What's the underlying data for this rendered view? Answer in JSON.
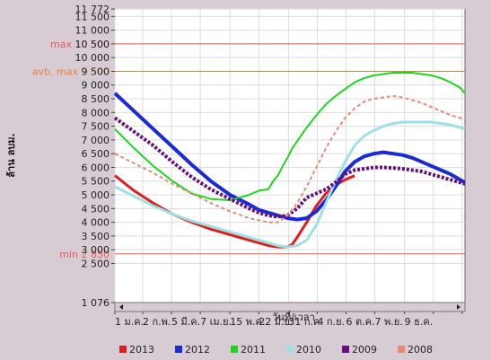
{
  "chart_data": {
    "type": "line",
    "title": "",
    "ylabel": "ล้าน ลบม.",
    "xlabel": "วันที่/เวลา",
    "ylim": [
      1076,
      11772
    ],
    "y_ticks": [
      1076,
      2500,
      3000,
      3500,
      4000,
      4500,
      5000,
      5500,
      6000,
      6500,
      7000,
      7500,
      8000,
      8500,
      9000,
      9500,
      10000,
      10500,
      11000,
      11500,
      11772
    ],
    "y_tick_labels": [
      "1 076",
      "2 500",
      "3 000",
      "3 500",
      "4 000",
      "4 500",
      "5 000",
      "5 500",
      "6 000",
      "6 500",
      "7 000",
      "7 500",
      "8 000",
      "8 500",
      "9 000",
      "9 500",
      "10 000",
      "10 500",
      "11 000",
      "11 500",
      "11 772"
    ],
    "xlim": [
      0,
      365
    ],
    "x_ticks": [
      0,
      29,
      59,
      89,
      120,
      150,
      181,
      211,
      241,
      271,
      302,
      332,
      362
    ],
    "x_tick_labels": [
      "1 ม.ค.",
      "2 ก.พ.",
      "5 มี.ค.",
      "7 เม.ย.",
      "15 พ.ค.",
      "22 มิ.ย.",
      "31 ก.ค.",
      "4 ก.ย.",
      "6 ต.ค.",
      "7 พ.ย.",
      "9 ธ.ค.",
      "",
      ""
    ],
    "reference_lines": [
      {
        "label": "max 10 500",
        "value": 10500,
        "color": "#e45a5a"
      },
      {
        "label": "avb. max 9 500",
        "value": 9500,
        "color": "#e8823a"
      },
      {
        "label": "min 2 850",
        "value": 2850,
        "color": "#e45a5a"
      }
    ],
    "grid": true,
    "legend_position": "bottom",
    "series": [
      {
        "name": "2013",
        "color": "#e01d1d",
        "style": "solid",
        "width": 3,
        "x": [
          0,
          20,
          40,
          60,
          80,
          100,
          120,
          140,
          160,
          170,
          180,
          185,
          190,
          200,
          210,
          220,
          230,
          240,
          250
        ],
        "y": [
          5700,
          5150,
          4700,
          4300,
          4000,
          3750,
          3550,
          3350,
          3150,
          3100,
          3100,
          3200,
          3450,
          4000,
          4600,
          5050,
          5350,
          5550,
          5700
        ]
      },
      {
        "name": "2012",
        "color": "#1a2ad6",
        "style": "solid",
        "width": 4,
        "x": [
          0,
          20,
          40,
          60,
          80,
          100,
          120,
          140,
          150,
          160,
          170,
          180,
          190,
          200,
          210,
          220,
          230,
          240,
          250,
          260,
          270,
          280,
          290,
          300,
          310,
          320,
          330,
          340,
          350,
          365
        ],
        "y": [
          8700,
          8050,
          7400,
          6750,
          6100,
          5500,
          5000,
          4650,
          4450,
          4350,
          4250,
          4150,
          4100,
          4150,
          4400,
          4800,
          5300,
          5850,
          6200,
          6400,
          6500,
          6550,
          6500,
          6450,
          6350,
          6200,
          6050,
          5900,
          5750,
          5450
        ]
      },
      {
        "name": "2011",
        "color": "#1fd61f",
        "style": "solid",
        "width": 2,
        "x": [
          0,
          20,
          40,
          60,
          80,
          100,
          120,
          140,
          150,
          160,
          165,
          170,
          175,
          180,
          185,
          190,
          200,
          210,
          220,
          230,
          240,
          250,
          260,
          270,
          280,
          290,
          300,
          310,
          320,
          330,
          340,
          350,
          360,
          365
        ],
        "y": [
          7400,
          6700,
          6050,
          5500,
          5050,
          4850,
          4800,
          5000,
          5150,
          5200,
          5500,
          5700,
          6050,
          6350,
          6700,
          6950,
          7450,
          7900,
          8300,
          8600,
          8850,
          9100,
          9250,
          9350,
          9400,
          9450,
          9450,
          9450,
          9400,
          9350,
          9250,
          9100,
          8900,
          8700
        ]
      },
      {
        "name": "2010",
        "color": "#9ee0e6",
        "style": "solid",
        "width": 3,
        "x": [
          0,
          20,
          40,
          60,
          80,
          100,
          120,
          140,
          160,
          170,
          180,
          190,
          200,
          210,
          220,
          230,
          240,
          250,
          260,
          270,
          280,
          290,
          300,
          310,
          320,
          330,
          340,
          350,
          360,
          365
        ],
        "y": [
          5300,
          4950,
          4600,
          4300,
          4050,
          3850,
          3650,
          3450,
          3250,
          3150,
          3100,
          3150,
          3350,
          3900,
          4700,
          5500,
          6200,
          6800,
          7150,
          7350,
          7500,
          7600,
          7650,
          7650,
          7650,
          7650,
          7600,
          7550,
          7450,
          7400
        ]
      },
      {
        "name": "2009",
        "color": "#661080",
        "style": "dotted",
        "width": 4,
        "x": [
          0,
          20,
          40,
          60,
          80,
          100,
          120,
          140,
          150,
          160,
          170,
          180,
          190,
          200,
          210,
          220,
          230,
          240,
          250,
          260,
          270,
          280,
          290,
          300,
          310,
          320,
          330,
          340,
          350,
          365
        ],
        "y": [
          7800,
          7300,
          6800,
          6200,
          5650,
          5200,
          4850,
          4500,
          4350,
          4250,
          4200,
          4250,
          4500,
          4900,
          5050,
          5200,
          5450,
          5750,
          5900,
          5950,
          6000,
          6000,
          5980,
          5950,
          5900,
          5850,
          5750,
          5650,
          5550,
          5400
        ]
      },
      {
        "name": "2008",
        "color": "#e8897a",
        "style": "dashed",
        "width": 2,
        "x": [
          0,
          20,
          40,
          60,
          80,
          100,
          120,
          140,
          160,
          170,
          180,
          190,
          200,
          210,
          220,
          230,
          240,
          250,
          260,
          270,
          280,
          290,
          300,
          310,
          320,
          330,
          340,
          350,
          360,
          365
        ],
        "y": [
          6500,
          6150,
          5800,
          5400,
          5050,
          4700,
          4400,
          4150,
          4000,
          4000,
          4250,
          4700,
          5300,
          6000,
          6700,
          7300,
          7800,
          8150,
          8400,
          8500,
          8550,
          8600,
          8550,
          8450,
          8350,
          8200,
          8050,
          7900,
          7800,
          7750
        ]
      }
    ]
  }
}
